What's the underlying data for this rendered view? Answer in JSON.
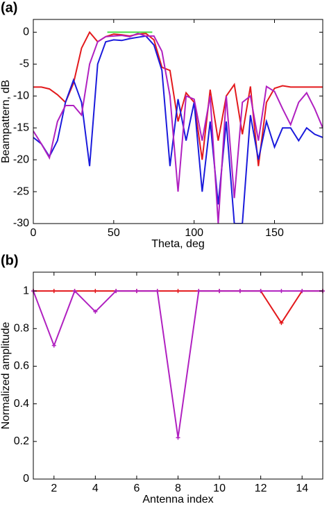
{
  "chart_data": [
    {
      "type": "line",
      "label": "(a)",
      "xlabel": "Theta, deg",
      "ylabel": "Beampattern, dB",
      "xlim": [
        0,
        180
      ],
      "ylim": [
        -30,
        2
      ],
      "xticks": [
        0,
        50,
        100,
        150
      ],
      "yticks": [
        -30,
        -25,
        -20,
        -15,
        -10,
        -5,
        0
      ],
      "x": [
        0,
        5,
        10,
        15,
        20,
        25,
        30,
        35,
        40,
        45,
        50,
        55,
        60,
        65,
        70,
        75,
        80,
        85,
        90,
        95,
        100,
        105,
        110,
        115,
        120,
        125,
        130,
        135,
        140,
        145,
        150,
        155,
        160,
        165,
        170,
        175,
        180
      ],
      "series": [
        {
          "color": "#e3191c",
          "values": [
            -8.6,
            -8.6,
            -8.9,
            -9.8,
            -11,
            -8,
            -2.5,
            0,
            -1.5,
            -0.7,
            -0.3,
            -0.4,
            -0.6,
            -0.3,
            -0.2,
            -1.2,
            -5.5,
            -6,
            -14,
            -9.5,
            -11,
            -20,
            -9,
            -17,
            -10,
            -8.2,
            -16,
            -8.5,
            -21,
            -11,
            -8.8,
            -8.4,
            -8.6,
            -8.6,
            -8.6,
            -8.6,
            -8.6
          ]
        },
        {
          "color": "#1a1adc",
          "values": [
            -16.5,
            -17.5,
            -19.5,
            -17,
            -11,
            -7.5,
            -11,
            -21,
            -5,
            -1.5,
            -1.2,
            -1.3,
            -1,
            -0.8,
            -0.6,
            -2,
            -6,
            -21,
            -10.5,
            -17,
            -11,
            -25,
            -14,
            -27,
            -14,
            -30,
            -30,
            -13,
            -20,
            -14,
            -18,
            -15,
            -15,
            -17,
            -15,
            -16,
            -16.5
          ]
        },
        {
          "color": "#b020c0",
          "values": [
            -15.5,
            -17.5,
            -19.7,
            -14,
            -11.5,
            -11.5,
            -13,
            -5,
            -1.5,
            -0.7,
            -0.6,
            -0.5,
            -0.7,
            -0.2,
            -0.6,
            -0.6,
            -3,
            -10,
            -25,
            -10,
            -10.5,
            -17,
            -10,
            -30,
            -10,
            -26,
            -11,
            -10,
            -17,
            -8.5,
            -9.3,
            -12,
            -14.5,
            -11,
            -9.5,
            -12,
            -15
          ]
        },
        {
          "color": "#44dd44",
          "x": [
            46,
            74
          ],
          "values": [
            0,
            0
          ]
        }
      ]
    },
    {
      "type": "line",
      "label": "(b)",
      "xlabel": "Antenna index",
      "ylabel": "Normalized amplitude",
      "markers": true,
      "xlim": [
        1,
        15
      ],
      "ylim": [
        0,
        1.1
      ],
      "xticks": [
        2,
        4,
        6,
        8,
        10,
        12,
        14
      ],
      "yticks": [
        0,
        0.2,
        0.4,
        0.6,
        0.8,
        1
      ],
      "x": [
        1,
        2,
        3,
        4,
        5,
        6,
        7,
        8,
        9,
        10,
        11,
        12,
        13,
        14,
        15
      ],
      "series": [
        {
          "color": "#e3191c",
          "values": [
            1,
            1,
            1,
            1,
            1,
            1,
            1,
            1,
            1,
            1,
            1,
            1,
            0.83,
            1,
            1
          ]
        },
        {
          "color": "#b020c0",
          "values": [
            1,
            0.71,
            1,
            0.89,
            1,
            1,
            1,
            0.22,
            1,
            1,
            1,
            1,
            1,
            1,
            1
          ]
        }
      ]
    }
  ]
}
